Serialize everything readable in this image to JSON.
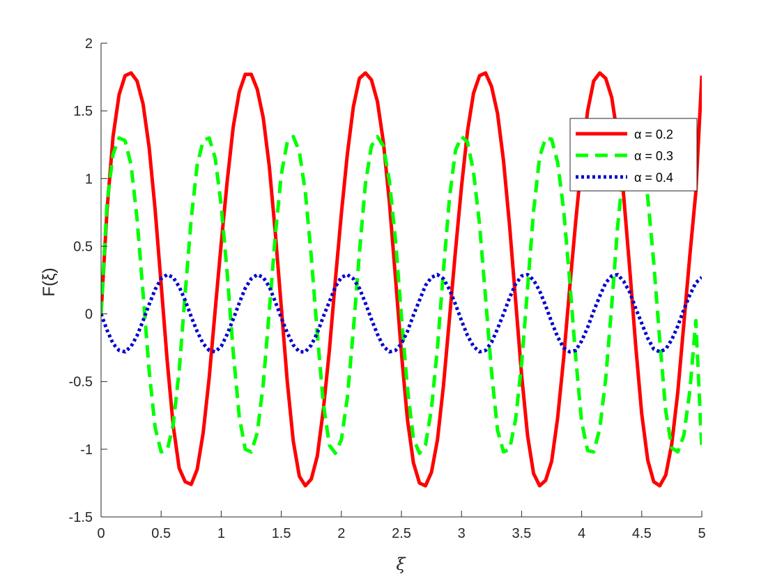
{
  "chart_data": {
    "type": "line",
    "xlabel": "ξ",
    "ylabel": "F(ξ)",
    "xlim": [
      0,
      5
    ],
    "ylim": [
      -1.5,
      2
    ],
    "xticks": [
      0,
      0.5,
      1,
      1.5,
      2,
      2.5,
      3,
      3.5,
      4,
      4.5,
      5
    ],
    "yticks": [
      -1.5,
      -1,
      -0.5,
      0,
      0.5,
      1,
      1.5,
      2
    ],
    "xtick_labels": [
      "0",
      "0.5",
      "1",
      "1.5",
      "2",
      "2.5",
      "3",
      "3.5",
      "4",
      "4.5",
      "5"
    ],
    "ytick_labels": [
      "-1.5",
      "-1",
      "-0.5",
      "0",
      "0.5",
      "1",
      "1.5",
      "2"
    ],
    "grid": false,
    "legend_position": "top-right",
    "series": [
      {
        "name": "α = 0.2",
        "color": "#ff0000",
        "style": "solid",
        "x": [
          0,
          0.05,
          0.1,
          0.15,
          0.2,
          0.25,
          0.3,
          0.35,
          0.4,
          0.45,
          0.5,
          0.55,
          0.6,
          0.65,
          0.7,
          0.75,
          0.8,
          0.85,
          0.9,
          0.95,
          1.0,
          1.05,
          1.1,
          1.15,
          1.2,
          1.25,
          1.3,
          1.35,
          1.4,
          1.45,
          1.5,
          1.55,
          1.6,
          1.65,
          1.7,
          1.75,
          1.8,
          1.85,
          1.9,
          1.95,
          2.0,
          2.05,
          2.1,
          2.15,
          2.2,
          2.25,
          2.3,
          2.35,
          2.4,
          2.45,
          2.5,
          2.55,
          2.6,
          2.65,
          2.7,
          2.75,
          2.8,
          2.85,
          2.9,
          2.95,
          3.0,
          3.05,
          3.1,
          3.15,
          3.2,
          3.25,
          3.3,
          3.35,
          3.4,
          3.45,
          3.5,
          3.55,
          3.6,
          3.65,
          3.7,
          3.75,
          3.8,
          3.85,
          3.9,
          3.95,
          4.0,
          4.05,
          4.1,
          4.15,
          4.2,
          4.25,
          4.3,
          4.35,
          4.4,
          4.45,
          4.5,
          4.55,
          4.6,
          4.65,
          4.7,
          4.75,
          4.8,
          4.85,
          4.9,
          4.95,
          5.0
        ],
        "y": [
          0.0,
          0.77,
          1.31,
          1.62,
          1.76,
          1.78,
          1.72,
          1.55,
          1.23,
          0.77,
          0.22,
          -0.34,
          -0.82,
          -1.14,
          -1.24,
          -1.26,
          -1.15,
          -0.88,
          -0.47,
          0.03,
          0.52,
          0.98,
          1.38,
          1.64,
          1.77,
          1.77,
          1.66,
          1.45,
          1.09,
          0.6,
          0.05,
          -0.5,
          -0.94,
          -1.2,
          -1.27,
          -1.22,
          -1.05,
          -0.71,
          -0.27,
          0.25,
          0.74,
          1.18,
          1.53,
          1.74,
          1.78,
          1.73,
          1.57,
          1.27,
          0.82,
          0.27,
          -0.29,
          -0.78,
          -1.1,
          -1.25,
          -1.27,
          -1.17,
          -0.93,
          -0.53,
          -0.03,
          0.47,
          0.94,
          1.35,
          1.63,
          1.76,
          1.78,
          1.68,
          1.48,
          1.13,
          0.65,
          0.1,
          -0.45,
          -0.9,
          -1.18,
          -1.27,
          -1.23,
          -1.09,
          -0.77,
          -0.33,
          0.19,
          0.68,
          1.13,
          1.5,
          1.72,
          1.78,
          1.74,
          1.6,
          1.31,
          0.87,
          0.33,
          -0.24,
          -0.74,
          -1.08,
          -1.24,
          -1.27,
          -1.19,
          -0.96,
          -0.58,
          -0.08,
          0.43,
          0.9,
          1.76
        ]
      },
      {
        "name": "α = 0.3",
        "color": "#00ff00",
        "style": "dashed",
        "x": [
          0,
          0.05,
          0.1,
          0.15,
          0.2,
          0.25,
          0.3,
          0.35,
          0.4,
          0.45,
          0.5,
          0.55,
          0.6,
          0.65,
          0.7,
          0.75,
          0.8,
          0.85,
          0.9,
          0.95,
          1.0,
          1.05,
          1.1,
          1.15,
          1.2,
          1.25,
          1.3,
          1.35,
          1.4,
          1.45,
          1.5,
          1.55,
          1.6,
          1.65,
          1.7,
          1.75,
          1.8,
          1.85,
          1.9,
          1.95,
          2.0,
          2.05,
          2.1,
          2.15,
          2.2,
          2.25,
          2.3,
          2.35,
          2.4,
          2.45,
          2.5,
          2.55,
          2.6,
          2.65,
          2.7,
          2.75,
          2.8,
          2.85,
          2.9,
          2.95,
          3.0,
          3.05,
          3.1,
          3.15,
          3.2,
          3.25,
          3.3,
          3.35,
          3.4,
          3.45,
          3.5,
          3.55,
          3.6,
          3.65,
          3.7,
          3.75,
          3.8,
          3.85,
          3.9,
          3.95,
          4.0,
          4.05,
          4.1,
          4.15,
          4.2,
          4.25,
          4.3,
          4.35,
          4.4,
          4.45,
          4.5,
          4.55,
          4.6,
          4.65,
          4.7,
          4.75,
          4.8,
          4.85,
          4.9,
          4.95,
          5.0
        ],
        "y": [
          0.0,
          0.82,
          1.18,
          1.3,
          1.28,
          1.1,
          0.7,
          0.15,
          -0.42,
          -0.84,
          -1.02,
          -1.01,
          -0.82,
          -0.42,
          0.15,
          0.7,
          1.1,
          1.28,
          1.3,
          1.15,
          0.8,
          0.3,
          -0.28,
          -0.76,
          -1.0,
          -1.02,
          -0.88,
          -0.52,
          0.02,
          0.58,
          1.03,
          1.27,
          1.31,
          1.2,
          0.9,
          0.42,
          -0.15,
          -0.66,
          -0.97,
          -1.03,
          -0.93,
          -0.62,
          -0.12,
          0.45,
          0.96,
          1.24,
          1.31,
          1.24,
          0.98,
          0.55,
          -0.02,
          -0.55,
          -0.92,
          -1.03,
          -0.97,
          -0.7,
          -0.25,
          0.32,
          0.86,
          1.21,
          1.31,
          1.27,
          1.05,
          0.66,
          0.12,
          -0.43,
          -0.86,
          -1.02,
          -1.0,
          -0.78,
          -0.37,
          0.19,
          0.76,
          1.16,
          1.3,
          1.29,
          1.12,
          0.77,
          0.25,
          -0.32,
          -0.8,
          -1.01,
          -1.02,
          -0.85,
          -0.48,
          0.06,
          0.65,
          1.1,
          1.29,
          1.3,
          1.18,
          0.86,
          0.38,
          -0.2,
          -0.72,
          -0.99,
          -1.02,
          -0.9,
          -0.57,
          -0.05,
          -1.0
        ]
      },
      {
        "name": "α = 0.4",
        "color": "#0000cc",
        "style": "dotted",
        "x": [
          0,
          0.05,
          0.1,
          0.15,
          0.2,
          0.25,
          0.3,
          0.35,
          0.4,
          0.45,
          0.5,
          0.55,
          0.6,
          0.65,
          0.7,
          0.75,
          0.8,
          0.85,
          0.9,
          0.95,
          1.0,
          1.05,
          1.1,
          1.15,
          1.2,
          1.25,
          1.3,
          1.35,
          1.4,
          1.45,
          1.5,
          1.55,
          1.6,
          1.65,
          1.7,
          1.75,
          1.8,
          1.85,
          1.9,
          1.95,
          2.0,
          2.05,
          2.1,
          2.15,
          2.2,
          2.25,
          2.3,
          2.35,
          2.4,
          2.45,
          2.5,
          2.55,
          2.6,
          2.65,
          2.7,
          2.75,
          2.8,
          2.85,
          2.9,
          2.95,
          3.0,
          3.05,
          3.1,
          3.15,
          3.2,
          3.25,
          3.3,
          3.35,
          3.4,
          3.45,
          3.5,
          3.55,
          3.6,
          3.65,
          3.7,
          3.75,
          3.8,
          3.85,
          3.9,
          3.95,
          4.0,
          4.05,
          4.1,
          4.15,
          4.2,
          4.25,
          4.3,
          4.35,
          4.4,
          4.45,
          4.5,
          4.55,
          4.6,
          4.65,
          4.7,
          4.75,
          4.8,
          4.85,
          4.9,
          4.95,
          5.0
        ],
        "y": [
          0.0,
          -0.12,
          -0.22,
          -0.27,
          -0.28,
          -0.24,
          -0.16,
          -0.05,
          0.07,
          0.18,
          0.26,
          0.29,
          0.27,
          0.2,
          0.1,
          -0.02,
          -0.13,
          -0.22,
          -0.27,
          -0.28,
          -0.24,
          -0.15,
          -0.04,
          0.08,
          0.19,
          0.26,
          0.29,
          0.27,
          0.2,
          0.09,
          -0.03,
          -0.14,
          -0.23,
          -0.28,
          -0.28,
          -0.23,
          -0.14,
          -0.02,
          0.09,
          0.2,
          0.27,
          0.29,
          0.26,
          0.19,
          0.08,
          -0.04,
          -0.15,
          -0.24,
          -0.28,
          -0.27,
          -0.22,
          -0.13,
          -0.01,
          0.1,
          0.21,
          0.27,
          0.29,
          0.26,
          0.18,
          0.07,
          -0.05,
          -0.16,
          -0.24,
          -0.28,
          -0.27,
          -0.21,
          -0.11,
          0.0,
          0.12,
          0.22,
          0.28,
          0.29,
          0.25,
          0.17,
          0.06,
          -0.06,
          -0.17,
          -0.25,
          -0.28,
          -0.27,
          -0.2,
          -0.1,
          0.02,
          0.13,
          0.23,
          0.28,
          0.29,
          0.24,
          0.16,
          0.04,
          -0.07,
          -0.18,
          -0.26,
          -0.28,
          -0.26,
          -0.19,
          -0.09,
          0.03,
          0.14,
          0.23,
          0.27
        ]
      }
    ]
  }
}
